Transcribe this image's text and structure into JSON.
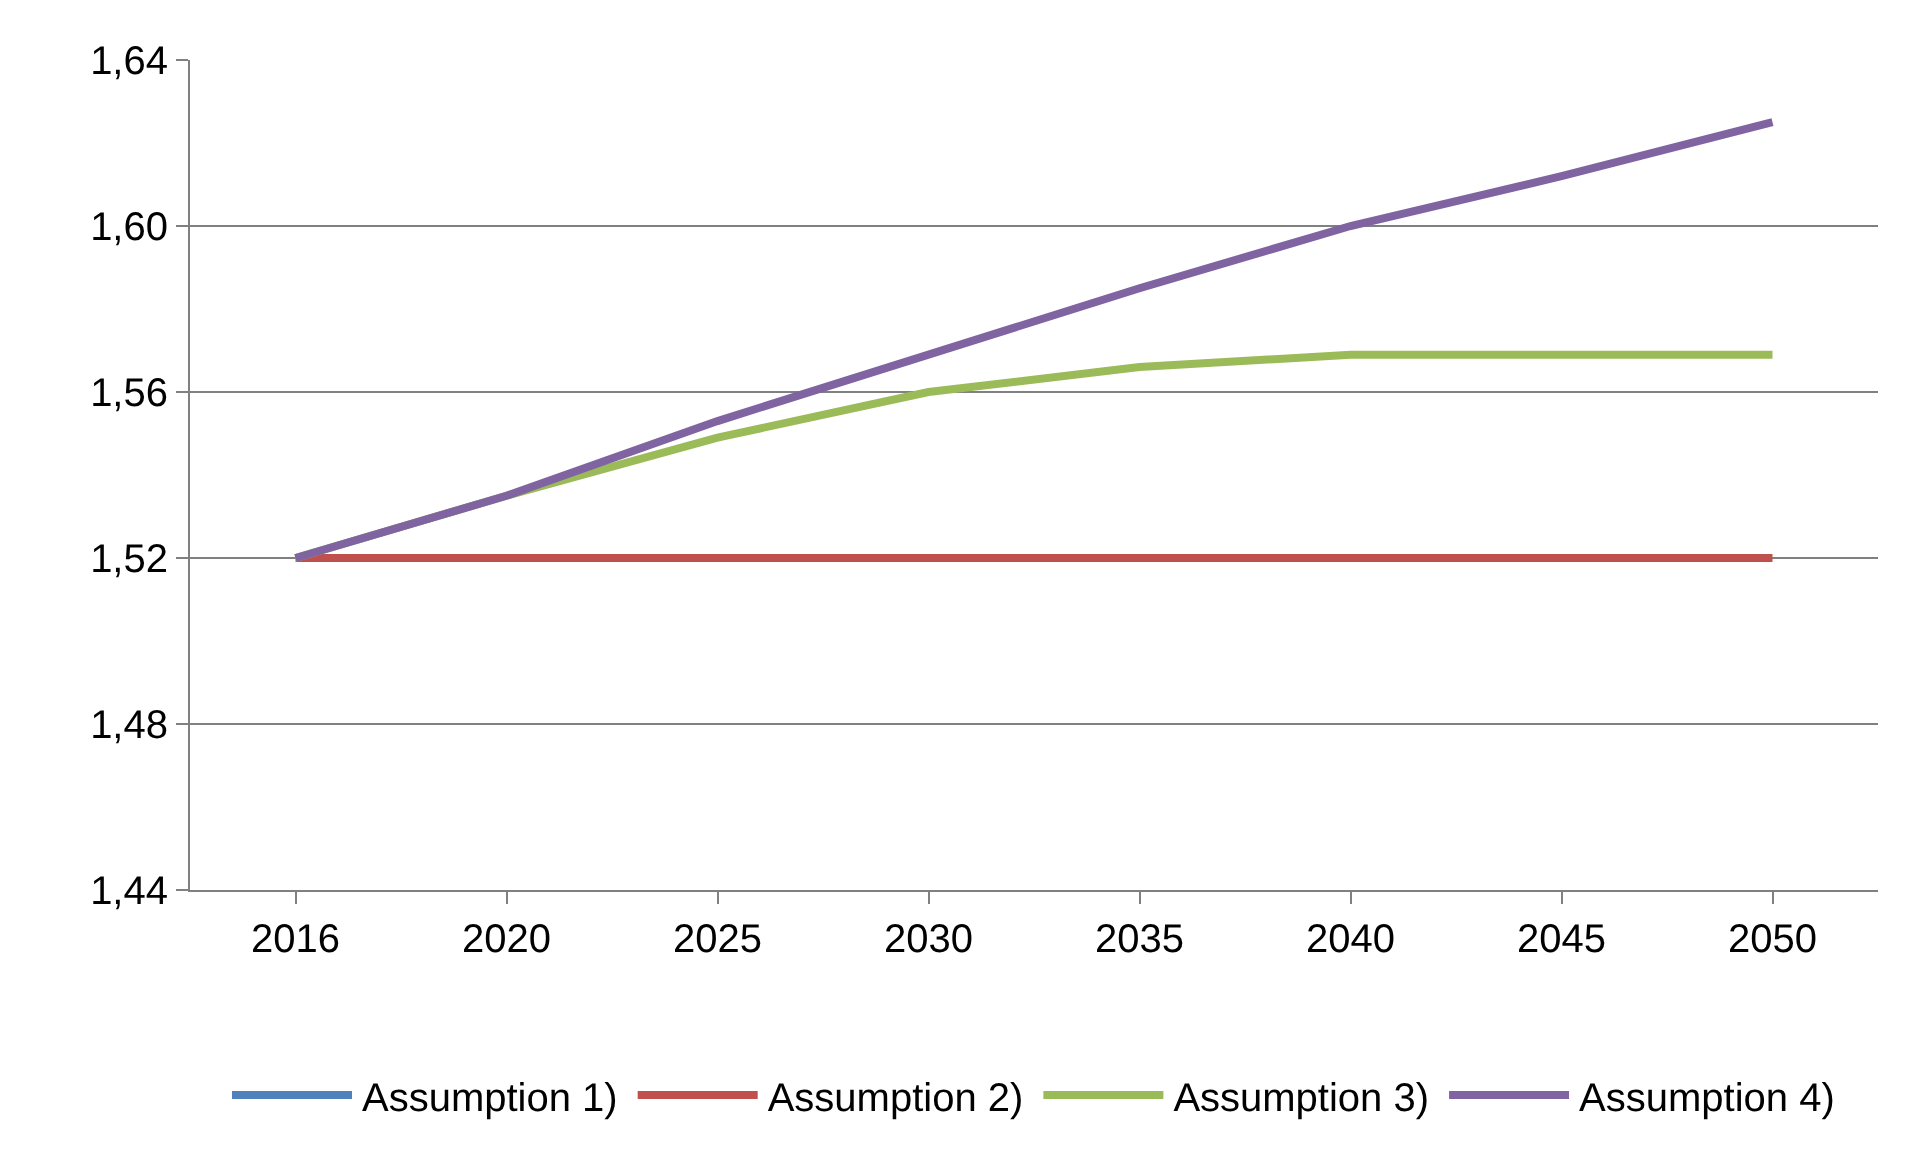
{
  "chart_data": {
    "type": "line",
    "categories": [
      "2016",
      "2020",
      "2025",
      "2030",
      "2035",
      "2040",
      "2045",
      "2050"
    ],
    "series": [
      {
        "name": "Assumption 1)",
        "color": "#4f81bd",
        "values": [
          null,
          null,
          null,
          null,
          null,
          null,
          null,
          null
        ]
      },
      {
        "name": "Assumption 2)",
        "color": "#c0504d",
        "values": [
          1.52,
          1.52,
          1.52,
          1.52,
          1.52,
          1.52,
          1.52,
          1.52
        ]
      },
      {
        "name": "Assumption 3)",
        "color": "#9bbb59",
        "values": [
          1.52,
          1.535,
          1.549,
          1.56,
          1.566,
          1.569,
          1.569,
          1.569
        ]
      },
      {
        "name": "Assumption 4)",
        "color": "#8064a2",
        "values": [
          1.52,
          1.535,
          1.553,
          1.569,
          1.585,
          1.6,
          1.612,
          1.625
        ]
      }
    ],
    "ylim": [
      1.44,
      1.64
    ],
    "yticks": [
      {
        "value": 1.44,
        "label": "1,44"
      },
      {
        "value": 1.48,
        "label": "1,48"
      },
      {
        "value": 1.52,
        "label": "1,52"
      },
      {
        "value": 1.56,
        "label": "1,56"
      },
      {
        "value": 1.6,
        "label": "1,60"
      },
      {
        "value": 1.64,
        "label": "1,64"
      }
    ],
    "grid": "y",
    "legend": "bottom",
    "marker": "none",
    "line_style": "solid"
  }
}
